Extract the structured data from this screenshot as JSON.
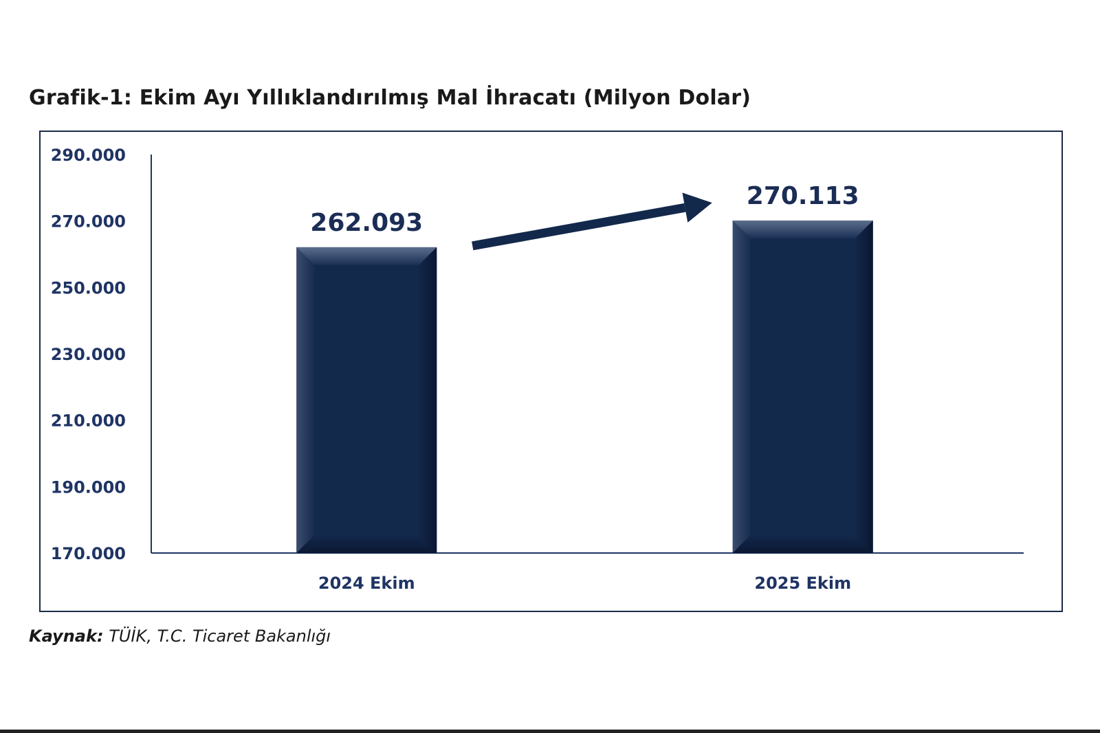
{
  "chart_data": {
    "type": "bar",
    "title": "Grafik-1: Ekim Ayı Yıllıklandırılmış Mal İhracatı (Milyon Dolar)",
    "categories": [
      "2024 Ekim",
      "2025 Ekim"
    ],
    "values": [
      262093,
      270113
    ],
    "value_labels": [
      "262.093",
      "270.113"
    ],
    "ylim": [
      170000,
      290000
    ],
    "yticks": [
      170000,
      190000,
      210000,
      230000,
      250000,
      270000,
      290000
    ],
    "ytick_labels": [
      "170.000",
      "190.000",
      "210.000",
      "230.000",
      "250.000",
      "270.000",
      "290.000"
    ],
    "xlabel": "",
    "ylabel": "",
    "grid": false,
    "legend": "none",
    "annotations": [
      {
        "type": "arrow",
        "direction": "up-right",
        "from_category": "2024 Ekim",
        "to_category": "2025 Ekim"
      }
    ],
    "bar_color": "#13294b",
    "label_color": "#1f3464"
  },
  "source": {
    "label": "Kaynak:",
    "text": "TÜİK, T.C. Ticaret Bakanlığı"
  }
}
